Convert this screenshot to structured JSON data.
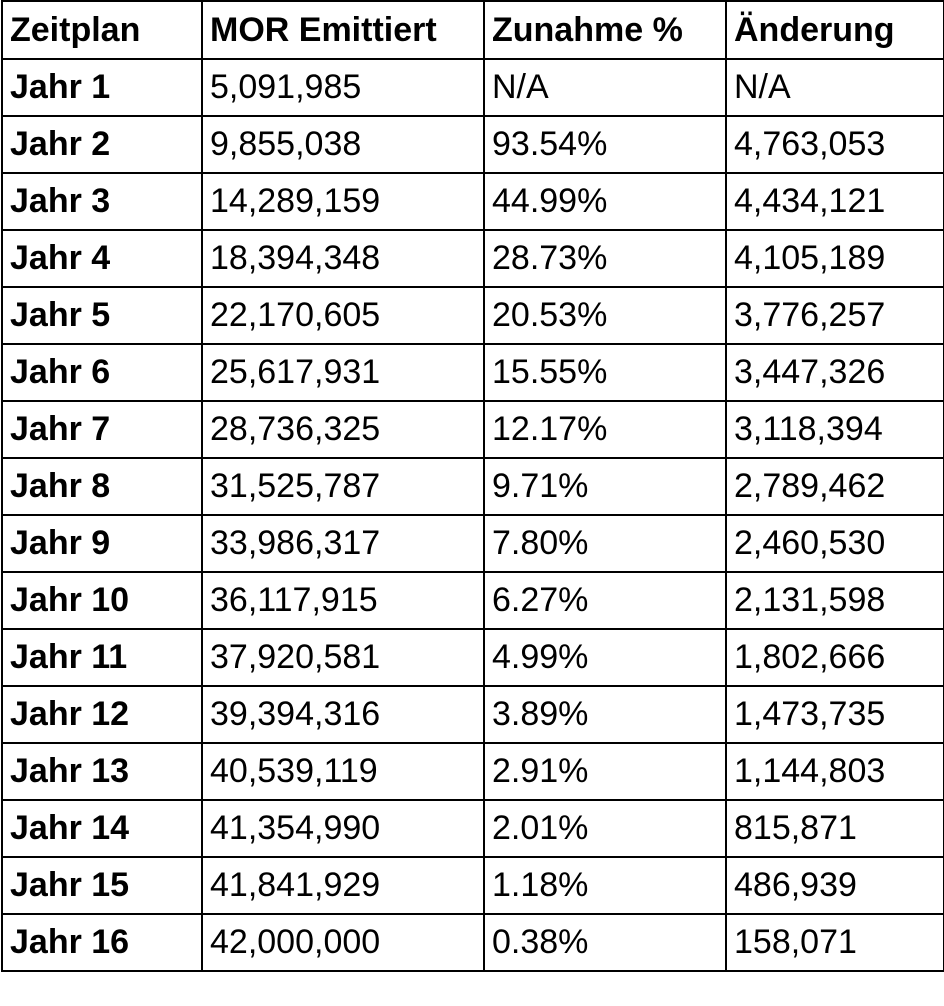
{
  "table": {
    "headers": [
      "Zeitplan",
      "MOR Emittiert",
      "Zunahme %",
      "Änderung"
    ],
    "rows": [
      [
        "Jahr 1",
        "5,091,985",
        "N/A",
        "N/A"
      ],
      [
        "Jahr 2",
        "9,855,038",
        "93.54%",
        "4,763,053"
      ],
      [
        "Jahr 3",
        "14,289,159",
        "44.99%",
        "4,434,121"
      ],
      [
        "Jahr 4",
        "18,394,348",
        "28.73%",
        "4,105,189"
      ],
      [
        "Jahr 5",
        "22,170,605",
        "20.53%",
        "3,776,257"
      ],
      [
        "Jahr 6",
        "25,617,931",
        "15.55%",
        "3,447,326"
      ],
      [
        "Jahr 7",
        "28,736,325",
        "12.17%",
        "3,118,394"
      ],
      [
        "Jahr 8",
        "31,525,787",
        "9.71%",
        "2,789,462"
      ],
      [
        "Jahr 9",
        "33,986,317",
        "7.80%",
        "2,460,530"
      ],
      [
        "Jahr 10",
        "36,117,915",
        "6.27%",
        "2,131,598"
      ],
      [
        "Jahr 11",
        "37,920,581",
        "4.99%",
        "1,802,666"
      ],
      [
        "Jahr 12",
        "39,394,316",
        "3.89%",
        "1,473,735"
      ],
      [
        "Jahr 13",
        "40,539,119",
        "2.91%",
        "1,144,803"
      ],
      [
        "Jahr 14",
        "41,354,990",
        "2.01%",
        "815,871"
      ],
      [
        "Jahr 15",
        "41,841,929",
        "1.18%",
        "486,939"
      ],
      [
        "Jahr 16",
        "42,000,000",
        "0.38%",
        "158,071"
      ]
    ]
  }
}
